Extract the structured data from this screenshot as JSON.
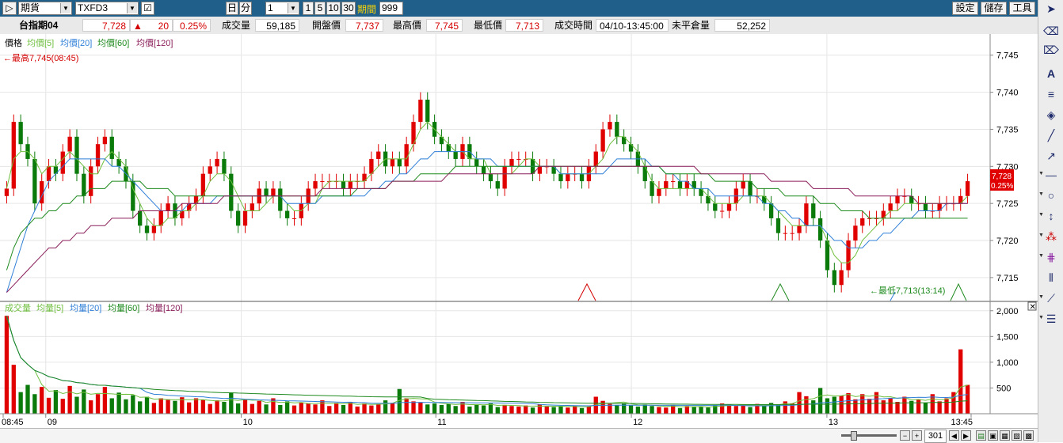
{
  "toolbar": {
    "market": "期貨",
    "symbol": "TXFD3",
    "day_label": "日",
    "min_label": "分",
    "interval": "1",
    "quick_intervals": [
      "1",
      "5",
      "10",
      "30"
    ],
    "period_label": "期間",
    "period_value": "999",
    "settings": "設定",
    "save": "儲存",
    "tools": "工具"
  },
  "quote": {
    "name": "台指期04",
    "last": "7,728",
    "change": "20",
    "change_pct": "0.25%",
    "volume_label": "成交量",
    "volume": "59,185",
    "open_label": "開盤價",
    "open": "7,737",
    "high_label": "最高價",
    "high": "7,745",
    "low_label": "最低價",
    "low": "7,713",
    "time_label": "成交時間",
    "time": "04/10-13:45:00",
    "oi_label": "未平倉量",
    "oi": "52,252"
  },
  "price_legend": {
    "title": "價格",
    "ma5": "均價[5]",
    "ma20": "均價[20]",
    "ma60": "均價[60]",
    "ma120": "均價[120]"
  },
  "volume_legend": {
    "title": "成交量",
    "ma5": "均量[5]",
    "ma20": "均量[20]",
    "ma60": "均量[60]",
    "ma120": "均量[120]"
  },
  "annotations": {
    "high": "←最高7,745(08:45)",
    "low": "←最低7,713(13:14)",
    "last_price_tag": "7,728",
    "last_pct_tag": "0.25%"
  },
  "bottom": {
    "count": "301"
  },
  "colors": {
    "up": "#e00000",
    "down": "#0a7a0a",
    "ma5": "#6fbf3f",
    "ma20": "#2f7fd8",
    "ma60": "#1e8a1e",
    "ma120": "#8a1e5a",
    "topbar": "#1f5f8a"
  },
  "chart_data": [
    {
      "type": "candlestick",
      "title": "價格",
      "x_ticks": [
        "08:45",
        "09",
        "10",
        "11",
        "12",
        "13",
        "13:45"
      ],
      "y_ticks": [
        7715,
        7720,
        7725,
        7730,
        7735,
        7740,
        7745
      ],
      "ylim": [
        7712,
        7747
      ],
      "grid": true,
      "series": [
        {
          "name": "價格",
          "close": [
            7727,
            7736,
            7733,
            7731,
            7725,
            7728,
            7730,
            7729,
            7732,
            7734,
            7729,
            7726,
            7730,
            7733,
            7734,
            7731,
            7730,
            7728,
            7724,
            7722,
            7721,
            7722,
            7724,
            7725,
            7723,
            7724,
            7725,
            7726,
            7729,
            7730,
            7731,
            7729,
            7724,
            7722,
            7724,
            7725,
            7727,
            7726,
            7727,
            7724,
            7723,
            7723,
            7725,
            7727,
            7728,
            7728,
            7728,
            7728,
            7727,
            7728,
            7728,
            7729,
            7731,
            7732,
            7730,
            7731,
            7730,
            7733,
            7736,
            7739,
            7736,
            7734,
            7733,
            7732,
            7731,
            7733,
            7731,
            7730,
            7729,
            7728,
            7727,
            7730,
            7731,
            7731,
            7731,
            7729,
            7730,
            7730,
            7729,
            7728,
            7729,
            7729,
            7728,
            7730,
            7732,
            7735,
            7736,
            7734,
            7733,
            7732,
            7730,
            7728,
            7726,
            7727,
            7728,
            7728,
            7727,
            7728,
            7727,
            7726,
            7725,
            7724,
            7724,
            7725,
            7727,
            7728,
            7726,
            7726,
            7725,
            7723,
            7721,
            7721,
            7721,
            7722,
            7725,
            7723,
            7720,
            7716,
            7714,
            7716,
            7720,
            7722,
            7723,
            7723,
            7723,
            7724,
            7725,
            7726,
            7726,
            7725,
            7725,
            7724,
            7724,
            7725,
            7725,
            7725,
            7726,
            7728
          ]
        },
        {
          "name": "均價[5]",
          "values": [
            7727,
            7731,
            7732,
            7732,
            7731,
            7729,
            7730,
            7730,
            7731,
            7732,
            7731,
            7730,
            7729,
            7729,
            7731,
            7732,
            7731,
            7730,
            7727,
            7725,
            7723,
            7722,
            7722,
            7723,
            7723,
            7724,
            7724,
            7725,
            7726,
            7728,
            7729,
            7729,
            7728,
            7726,
            7724,
            7724,
            7724,
            7725,
            7726,
            7726,
            7725,
            7724,
            7724,
            7725,
            7725,
            7727,
            7728,
            7728,
            7728,
            7728,
            7728,
            7728,
            7729,
            7730,
            7731,
            7731,
            7731,
            7731,
            7733,
            7735,
            7736,
            7735,
            7734,
            7733,
            7732,
            7732,
            7731,
            7731,
            7731,
            7729,
            7729,
            7729,
            7729,
            7730,
            7731,
            7731,
            7730,
            7730,
            7730,
            7729,
            7729,
            7729,
            7729,
            7729,
            7730,
            7731,
            7733,
            7734,
            7734,
            7733,
            7732,
            7730,
            7728,
            7727,
            7727,
            7727,
            7727,
            7727,
            7727,
            7727,
            7726,
            7725,
            7725,
            7725,
            7725,
            7726,
            7726,
            7726,
            7726,
            7725,
            7724,
            7723,
            7722,
            7722,
            7722,
            7722,
            7722,
            7720,
            7718,
            7717,
            7717,
            7718,
            7720,
            7721,
            7722,
            7723,
            7724,
            7724,
            7725,
            7725,
            7725,
            7725,
            7725,
            7725,
            7725,
            7725,
            7725,
            7726
          ]
        },
        {
          "name": "均價[20]",
          "values": [
            7713,
            7716,
            7719,
            7722,
            7724,
            7726,
            7728,
            7729,
            7730,
            7731,
            7731,
            7731,
            7731,
            7731,
            7731,
            7730,
            7730,
            7729,
            7728,
            7727,
            7726,
            7725,
            7724,
            7724,
            7724,
            7724,
            7725,
            7725,
            7725,
            7725,
            7726,
            7726,
            7726,
            7726,
            7726,
            7726,
            7726,
            7726,
            7726,
            7726,
            7725,
            7725,
            7725,
            7725,
            7725,
            7726,
            7726,
            7726,
            7726,
            7726,
            7726,
            7726,
            7727,
            7727,
            7728,
            7728,
            7729,
            7729,
            7730,
            7731,
            7731,
            7732,
            7732,
            7732,
            7732,
            7732,
            7732,
            7731,
            7731,
            7731,
            7730,
            7730,
            7730,
            7730,
            7730,
            7730,
            7730,
            7730,
            7730,
            7729,
            7729,
            7729,
            7729,
            7729,
            7729,
            7729,
            7730,
            7731,
            7731,
            7731,
            7731,
            7731,
            7730,
            7730,
            7729,
            7729,
            7728,
            7728,
            7727,
            7727,
            7727,
            7726,
            7726,
            7726,
            7726,
            7726,
            7726,
            7726,
            7725,
            7725,
            7724,
            7724,
            7723,
            7723,
            7722,
            7722,
            7722,
            7721,
            7720,
            7720,
            7719,
            7719,
            7719,
            7720,
            7720,
            7721,
            7721,
            7722,
            7723,
            7723,
            7724,
            7724,
            7724,
            7724,
            7725,
            7725,
            7725,
            7725
          ]
        },
        {
          "name": "均價[60]",
          "values": [
            7716,
            7719,
            7721,
            7722,
            7723,
            7723,
            7724,
            7724,
            7725,
            7725,
            7726,
            7726,
            7727,
            7727,
            7727,
            7728,
            7728,
            7728,
            7728,
            7728,
            7727,
            7727,
            7727,
            7727,
            7726,
            7726,
            7726,
            7726,
            7726,
            7726,
            7726,
            7726,
            7726,
            7726,
            7726,
            7726,
            7726,
            7726,
            7726,
            7726,
            7726,
            7726,
            7726,
            7726,
            7726,
            7726,
            7726,
            7726,
            7726,
            7726,
            7727,
            7727,
            7727,
            7727,
            7727,
            7728,
            7728,
            7728,
            7728,
            7729,
            7729,
            7729,
            7729,
            7729,
            7730,
            7730,
            7730,
            7730,
            7730,
            7730,
            7730,
            7730,
            7730,
            7730,
            7730,
            7730,
            7730,
            7730,
            7730,
            7730,
            7730,
            7730,
            7730,
            7730,
            7730,
            7730,
            7730,
            7730,
            7730,
            7730,
            7730,
            7730,
            7730,
            7730,
            7729,
            7729,
            7729,
            7729,
            7729,
            7729,
            7729,
            7728,
            7728,
            7728,
            7728,
            7728,
            7728,
            7727,
            7727,
            7727,
            7727,
            7726,
            7726,
            7726,
            7726,
            7726,
            7725,
            7725,
            7725,
            7724,
            7724,
            7724,
            7724,
            7723,
            7723,
            7723,
            7723,
            7723,
            7723,
            7723,
            7723,
            7723,
            7723,
            7723,
            7723,
            7723,
            7723,
            7723
          ]
        },
        {
          "name": "均價[120]",
          "values": [
            7713,
            7714,
            7715,
            7716,
            7717,
            7718,
            7719,
            7719,
            7720,
            7720,
            7721,
            7721,
            7722,
            7722,
            7722,
            7723,
            7723,
            7723,
            7723,
            7724,
            7724,
            7724,
            7724,
            7724,
            7724,
            7725,
            7725,
            7725,
            7725,
            7725,
            7725,
            7726,
            7726,
            7726,
            7726,
            7726,
            7726,
            7726,
            7726,
            7726,
            7726,
            7726,
            7726,
            7726,
            7726,
            7727,
            7727,
            7727,
            7727,
            7727,
            7727,
            7727,
            7727,
            7727,
            7727,
            7728,
            7728,
            7728,
            7728,
            7728,
            7728,
            7728,
            7728,
            7729,
            7729,
            7729,
            7729,
            7729,
            7729,
            7729,
            7729,
            7729,
            7729,
            7729,
            7729,
            7729,
            7730,
            7730,
            7730,
            7730,
            7730,
            7730,
            7730,
            7730,
            7730,
            7730,
            7730,
            7730,
            7730,
            7730,
            7730,
            7730,
            7730,
            7730,
            7730,
            7730,
            7730,
            7730,
            7730,
            7729,
            7729,
            7729,
            7729,
            7729,
            7729,
            7729,
            7729,
            7729,
            7729,
            7728,
            7728,
            7728,
            7728,
            7728,
            7728,
            7727,
            7727,
            7727,
            7727,
            7727,
            7727,
            7726,
            7726,
            7726,
            7726,
            7726,
            7726,
            7726,
            7726,
            7726,
            7725,
            7725,
            7725,
            7725,
            7725,
            7725,
            7725,
            7725
          ]
        }
      ]
    },
    {
      "type": "bar",
      "title": "成交量",
      "y_ticks": [
        500,
        1000,
        1500,
        2000
      ],
      "ylim": [
        0,
        2150
      ],
      "grid": true,
      "series": [
        {
          "name": "成交量",
          "values": [
            1900,
            950,
            420,
            560,
            380,
            520,
            310,
            460,
            290,
            540,
            330,
            470,
            260,
            380,
            520,
            300,
            410,
            280,
            360,
            240,
            330,
            210,
            300,
            280,
            250,
            320,
            220,
            300,
            270,
            190,
            260,
            230,
            410,
            200,
            280,
            190,
            250,
            180,
            300,
            170,
            240,
            160,
            220,
            200,
            180,
            260,
            150,
            210,
            170,
            230,
            140,
            200,
            160,
            190,
            260,
            210,
            480,
            300,
            240,
            220,
            180,
            200,
            170,
            190,
            150,
            230,
            140,
            180,
            160,
            200,
            130,
            170,
            150,
            140,
            160,
            120,
            180,
            140,
            130,
            150,
            120,
            160,
            110,
            140,
            330,
            250,
            190,
            170,
            200,
            160,
            140,
            180,
            150,
            130,
            120,
            170,
            110,
            150,
            130,
            140,
            120,
            160,
            200,
            180,
            150,
            170,
            130,
            190,
            160,
            210,
            180,
            240,
            200,
            420,
            340,
            260,
            500,
            300,
            330,
            350,
            400,
            280,
            380,
            290,
            420,
            260,
            300,
            230,
            330,
            250,
            280,
            210,
            380,
            240,
            300,
            420,
            1250,
            560
          ]
        }
      ]
    }
  ]
}
